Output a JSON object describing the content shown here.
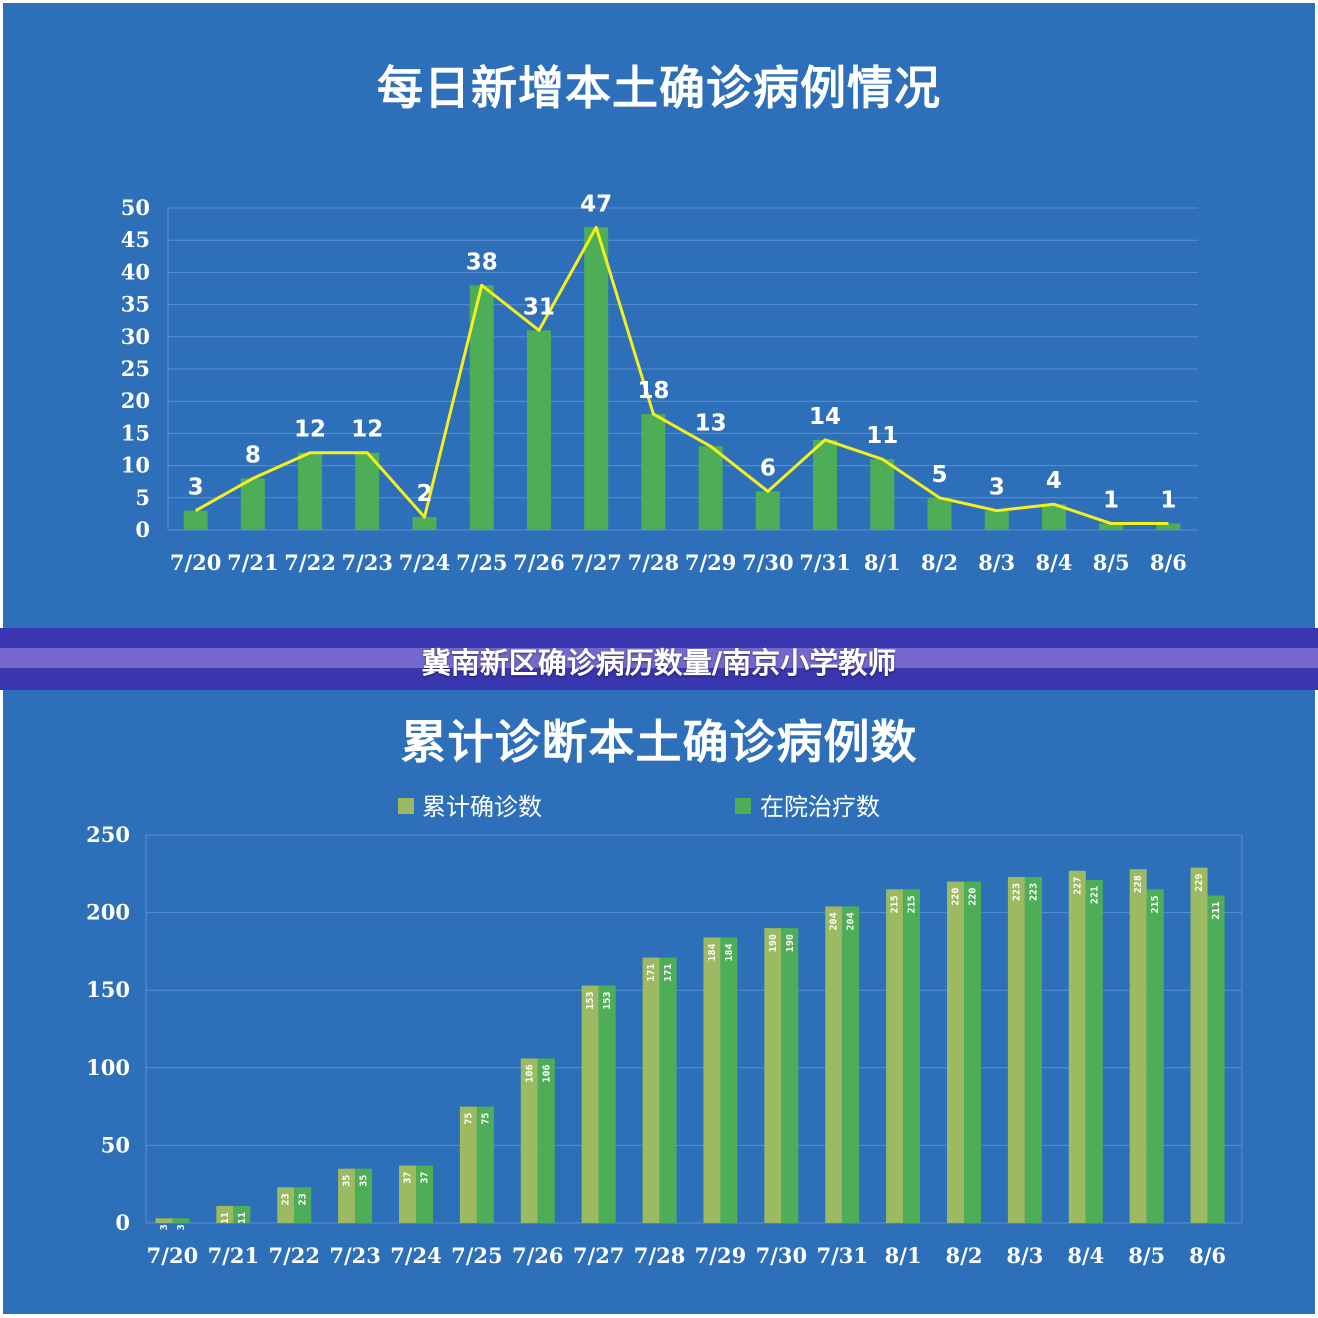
{
  "banner": "冀南新区确诊病历数量/南京小学教师",
  "chart_data": [
    {
      "id": "daily",
      "type": "bar",
      "title": "每日新增本土确诊病例情况",
      "categories": [
        "7/20",
        "7/21",
        "7/22",
        "7/23",
        "7/24",
        "7/25",
        "7/26",
        "7/27",
        "7/28",
        "7/29",
        "7/30",
        "7/31",
        "8/1",
        "8/2",
        "8/3",
        "8/4",
        "8/5",
        "8/6"
      ],
      "values": [
        3,
        8,
        12,
        12,
        2,
        38,
        31,
        47,
        18,
        13,
        6,
        14,
        11,
        5,
        3,
        4,
        1,
        1
      ],
      "line_overlay": true,
      "yticks": [
        0,
        5,
        10,
        15,
        20,
        25,
        30,
        35,
        40,
        45,
        50
      ],
      "ylim": [
        0,
        50
      ],
      "grid": true,
      "colors": {
        "bar": "#4eae57",
        "line": "#f4f01e"
      }
    },
    {
      "id": "cumulative",
      "type": "bar",
      "title": "累计诊断本土确诊病例数",
      "categories": [
        "7/20",
        "7/21",
        "7/22",
        "7/23",
        "7/24",
        "7/25",
        "7/26",
        "7/27",
        "7/28",
        "7/29",
        "7/30",
        "7/31",
        "8/1",
        "8/2",
        "8/3",
        "8/4",
        "8/5",
        "8/6"
      ],
      "series": [
        {
          "name": "累计确诊数",
          "color": "#9bba62",
          "values": [
            3,
            11,
            23,
            35,
            37,
            75,
            106,
            153,
            171,
            184,
            190,
            204,
            215,
            220,
            223,
            227,
            228,
            229
          ]
        },
        {
          "name": "在院治疗数",
          "color": "#4eae57",
          "values": [
            3,
            11,
            23,
            35,
            37,
            75,
            106,
            153,
            171,
            184,
            190,
            204,
            215,
            220,
            223,
            221,
            215,
            211
          ]
        }
      ],
      "bar_labels": [
        [
          "3",
          "11",
          "23",
          "35",
          "37",
          "75",
          "106",
          "153",
          "171",
          "184",
          "190",
          "204",
          "215",
          "220",
          "223",
          "227",
          "228",
          "229"
        ],
        [
          "3",
          "11",
          "23",
          "35",
          "37",
          "75",
          "106",
          "153",
          "171",
          "184",
          "190",
          "204",
          "215",
          "220",
          "223",
          "221",
          "215",
          "211"
        ]
      ],
      "yticks": [
        0,
        50,
        100,
        150,
        200,
        250
      ],
      "ylim": [
        0,
        250
      ],
      "grid": true,
      "legend": "top"
    }
  ]
}
